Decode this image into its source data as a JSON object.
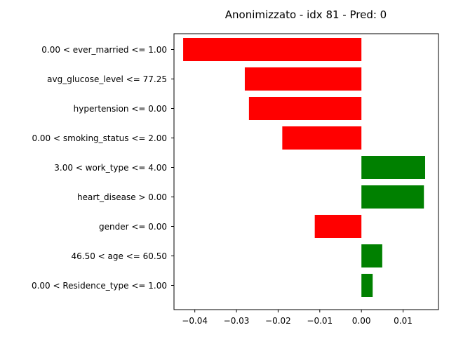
{
  "chart_data": {
    "type": "bar",
    "orientation": "horizontal",
    "title": "Anonimizzato - idx 81 - Pred: 0",
    "xlabel": "",
    "ylabel": "",
    "xlim": [
      -0.045,
      0.0185
    ],
    "xticks": [
      -0.04,
      -0.03,
      -0.02,
      -0.01,
      0.0,
      0.01
    ],
    "xtick_labels": [
      "−0.04",
      "−0.03",
      "−0.02",
      "−0.01",
      "0.00",
      "0.01"
    ],
    "grid": false,
    "legend": "none",
    "colors": {
      "positive": "#008000",
      "negative": "#ff0000"
    },
    "categories": [
      "0.00 < ever_married <= 1.00",
      "avg_glucose_level <= 77.25",
      "hypertension <= 0.00",
      "0.00 < smoking_status <= 2.00",
      "3.00 < work_type <= 4.00",
      "heart_disease > 0.00",
      "gender <= 0.00",
      "46.50 < age <= 60.50",
      "0.00 < Residence_type <= 1.00"
    ],
    "values": [
      -0.0428,
      -0.028,
      -0.027,
      -0.019,
      0.0153,
      0.015,
      -0.0112,
      0.005,
      0.0027
    ]
  }
}
